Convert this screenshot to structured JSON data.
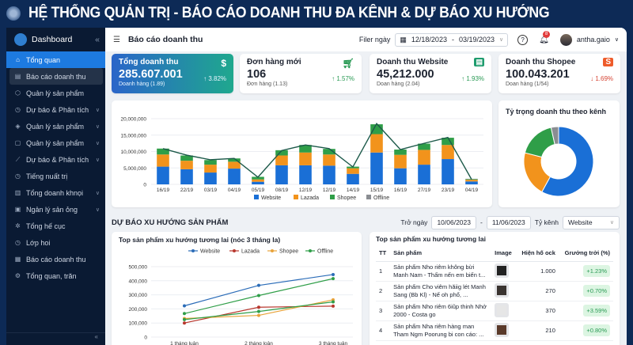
{
  "banner": {
    "title": "HỆ THỐNG QUẢN TRỊ - BÁO CÁO DOANH THU ĐA KÊNH & DỰ BÁO XU HƯỚNG"
  },
  "sidebar": {
    "title": "Dashboard",
    "items": [
      {
        "label": "Tổng quan",
        "icon": "home-icon",
        "state": "active"
      },
      {
        "label": "Báo cáo doanh thu",
        "icon": "report-icon",
        "state": "selected"
      },
      {
        "label": "Quản lý sản phẩm",
        "icon": "box-icon"
      },
      {
        "label": "Dự báo & Phân tích",
        "icon": "clock-icon",
        "chevron": true
      },
      {
        "label": "Quản lý sản phẩm",
        "icon": "tag-icon",
        "chevron": true
      },
      {
        "label": "Quản lý sản phẩm",
        "icon": "bag-icon",
        "chevron": true
      },
      {
        "label": "Dự báo & Phân tích",
        "icon": "line-chart-icon",
        "chevron": true
      },
      {
        "label": "Tiếng nuất trị",
        "icon": "clock-icon"
      },
      {
        "label": "Tổng doanh khnọi",
        "icon": "building-icon",
        "chevron": true
      },
      {
        "label": "Ngản lý sản ỏng",
        "icon": "inbox-icon",
        "chevron": true
      },
      {
        "label": "Tổng hế cục",
        "icon": "globe-icon"
      },
      {
        "label": "Lớp hoi",
        "icon": "clock-icon"
      },
      {
        "label": "Báo cáo doanh thu",
        "icon": "calendar-icon"
      },
      {
        "label": "Tổng quan, trăn",
        "icon": "gear-icon"
      }
    ]
  },
  "topbar": {
    "title": "Báo cáo doanh thu",
    "filter_label": "Filer ngày",
    "date_from": "12/18/2023",
    "date_sep": "-",
    "date_to": "03/19/2023",
    "notifications": "8",
    "user": "antha.gaio"
  },
  "kpis": [
    {
      "label": "Tổng doanh thu",
      "value": "285.607.001",
      "sub": "Doanh hàng (1.89)",
      "change": "↑ 3.82%",
      "icon": "dollar-icon",
      "trend": "up"
    },
    {
      "label": "Đơn hàng mới",
      "value": "106",
      "sub": "Đơn hàng (1.13)",
      "change": "↑ 1.57%",
      "icon": "cart-icon",
      "trend": "up"
    },
    {
      "label": "Doanh thu Website",
      "value": "45,212.000",
      "sub": "Doan hàng (2.04)",
      "change": "↑ 1.93%",
      "icon": "website-icon",
      "trend": "up"
    },
    {
      "label": "Doanh thu Shopee",
      "value": "100.043.201",
      "sub": "Doan hàng (1/54)",
      "change": "↓ 1.69%",
      "icon": "shopee-bag-icon",
      "trend": "down"
    }
  ],
  "colors": {
    "website": "#1a6fd6",
    "lazada": "#f2931c",
    "shopee": "#2f9e48",
    "offline": "#8a8d92",
    "up": "#2a9a55",
    "down": "#d64535"
  },
  "chart_data": [
    {
      "type": "bar",
      "stacked": true,
      "categories": [
        "16/19",
        "22/19",
        "03/19",
        "04/19",
        "05/19",
        "08/19",
        "12/19",
        "12/19",
        "14/19",
        "15/19",
        "16/19",
        "27/19",
        "23/19",
        "04/19"
      ],
      "series": [
        {
          "name": "Website",
          "values": [
            5400000,
            4600000,
            3600000,
            4800000,
            800000,
            5800000,
            5800000,
            5700000,
            3200000,
            9700000,
            4900000,
            6000000,
            7700000,
            900000
          ]
        },
        {
          "name": "Lazada",
          "values": [
            3700000,
            2600000,
            2400000,
            2100000,
            700000,
            3000000,
            3900000,
            3400000,
            1700000,
            5600000,
            4100000,
            4500000,
            4300000,
            500000
          ]
        },
        {
          "name": "Shopee",
          "values": [
            1800000,
            1600000,
            1400000,
            1000000,
            800000,
            1600000,
            2300000,
            1700000,
            500000,
            3000000,
            1600000,
            1900000,
            2200000,
            200000
          ]
        },
        {
          "name": "Offline",
          "values": [
            0,
            0,
            0,
            0,
            0,
            0,
            0,
            0,
            0,
            0,
            0,
            0,
            0,
            100000
          ]
        }
      ],
      "line": [
        10900000,
        8900000,
        7500000,
        7900000,
        2200000,
        10300000,
        12000000,
        10900000,
        5300000,
        18500000,
        10600000,
        12500000,
        14300000,
        1500000
      ],
      "yticks": [
        "0",
        "5,000,000",
        "10,000,000",
        "15,000,000",
        "20,000,000"
      ],
      "ylim": [
        0,
        20000000
      ],
      "legend": "bottom",
      "grid": true
    },
    {
      "type": "pie",
      "donut": true,
      "title": "Tỷ trọng doanh thu theo kênh",
      "slices": [
        {
          "label": "Website",
          "value": 58
        },
        {
          "label": "Lazada",
          "value": 21
        },
        {
          "label": "Shopee",
          "value": 17.5
        },
        {
          "label": "Offline",
          "value": 3.5
        }
      ]
    },
    {
      "type": "line",
      "title": "Top sản phẩm xu hướng tương lai (nóc 3 tháng la)",
      "categories": [
        "1 tháng luân",
        "2 tháng loân",
        "3 tháng tuân"
      ],
      "series": [
        {
          "name": "Website",
          "values": [
            222000,
            367000,
            444000
          ]
        },
        {
          "name": "Lazada",
          "values": [
            100000,
            212000,
            220000
          ]
        },
        {
          "name": "Shopee",
          "values": [
            132000,
            154000,
            265000
          ]
        },
        {
          "name": "Offline",
          "values": [
            167000,
            295000,
            415000
          ]
        },
        {
          "values": [
            124000,
            182000,
            250000
          ]
        }
      ],
      "yticks": [
        "0",
        "100,000",
        "200,000",
        "300,000",
        "400,000",
        "500,000"
      ],
      "ylim": [
        0,
        500000
      ],
      "legend": "top",
      "grid": true
    }
  ],
  "forecast": {
    "title": "DỰ BÁO XU HƯỚNG SẢN PHẨM",
    "from_label": "Trở ngày",
    "from": "10/06/2023",
    "sep": "-",
    "to": "11/06/2023",
    "channel_label": "Tỷ kênh",
    "channel": "Website"
  },
  "table": {
    "title": "Top sản phẩm xu hướng tương lai",
    "headers": [
      "TT",
      "Sản phẩm",
      "Image",
      "Hiện hố ock",
      "Grưởng trởi (%)"
    ],
    "rows": [
      {
        "tt": "1",
        "name": "Sản phẩm Nho riêm không bừi Manh Nam - Thấm nến em biến t...",
        "stock": "1.000",
        "growth": "+1.23%"
      },
      {
        "tt": "2",
        "name": "Sản phẩm Cho viêm hăiig lét Manh Sang (Bb Kl) - Nế oh phổ, ...",
        "stock": "270",
        "growth": "+0.70%"
      },
      {
        "tt": "3",
        "name": "Sản phẩm Nho riêm 6iũp thinh Nhở 2000 - Costa go",
        "stock": "370",
        "growth": "+3.59%"
      },
      {
        "tt": "4",
        "name": "Sản phẩm Nha riêm hàng man Tham Ngm Poorung bi con cáo: ...",
        "stock": "210",
        "growth": "+0.80%"
      }
    ]
  }
}
